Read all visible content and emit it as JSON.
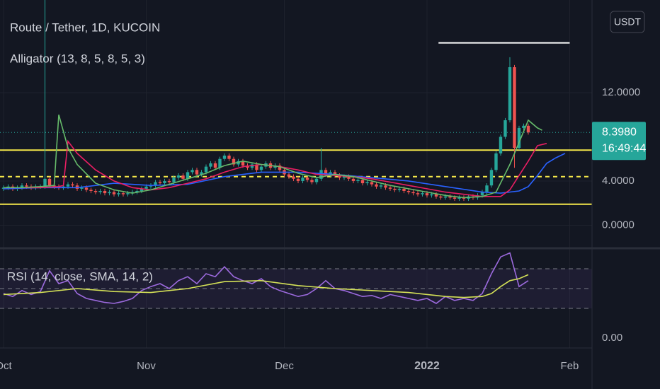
{
  "chart_data": [
    {
      "type": "candlestick",
      "title": "Route / Tether, 1D, KUCOIN",
      "subtitle": "Alligator (13, 8, 5, 8, 5, 3)",
      "currency": "USDT",
      "up_color": "#26a69a",
      "down_color": "#ef5350",
      "xlim": [
        -0.77,
        127.85
      ],
      "ylim": [
        -2.02,
        20.38
      ],
      "grid": true,
      "xticks": [
        {
          "value": 0,
          "label": "Oct"
        },
        {
          "value": 31,
          "label": "Nov"
        },
        {
          "value": 61,
          "label": "Dec"
        },
        {
          "value": 92,
          "label": "2022"
        },
        {
          "value": 123,
          "label": "Feb"
        }
      ],
      "yticks": [
        {
          "value": 0,
          "label": "0.0000"
        },
        {
          "value": 4,
          "label": "4.0000"
        },
        {
          "value": 12,
          "label": "12.0000"
        }
      ],
      "open": [
        3.3,
        3.4,
        3.5,
        3.3,
        3.4,
        3.6,
        3.5,
        3.4,
        3.5,
        3.5,
        4.2,
        3.6,
        3.5,
        3.4,
        3.5,
        3.7,
        3.6,
        3.3,
        3.4,
        3.2,
        3.1,
        3.0,
        3.1,
        2.9,
        3.0,
        2.8,
        2.9,
        2.8,
        2.9,
        3.0,
        3.1,
        3.3,
        3.5,
        3.6,
        3.9,
        3.8,
        4.0,
        3.9,
        4.3,
        4.5,
        4.2,
        4.8,
        5.0,
        4.6,
        4.8,
        5.3,
        5.6,
        5.2,
        6.0,
        6.3,
        6.0,
        5.5,
        5.8,
        5.4,
        5.2,
        5.5,
        5.0,
        5.3,
        5.6,
        5.2,
        5.4,
        5.0,
        4.6,
        4.4,
        4.2,
        4.0,
        4.3,
        4.1,
        3.9,
        4.2,
        5.0,
        4.6,
        4.8,
        4.5,
        4.3,
        4.4,
        4.2,
        4.0,
        4.1,
        3.8,
        3.9,
        3.7,
        3.5,
        3.6,
        3.4,
        3.3,
        3.2,
        3.3,
        3.1,
        3.0,
        2.9,
        2.8,
        2.9,
        2.7,
        2.8,
        2.6,
        2.5,
        2.6,
        2.5,
        2.4,
        2.5,
        2.4,
        2.6,
        2.5,
        2.7,
        3.0,
        3.6,
        5.0,
        6.5,
        8.0,
        9.5,
        14.3,
        7.0,
        8.8,
        9.0
      ],
      "high": [
        3.6,
        3.7,
        3.7,
        3.6,
        3.8,
        3.8,
        3.7,
        3.7,
        3.7,
        20.5,
        4.4,
        3.8,
        3.7,
        3.7,
        3.9,
        3.9,
        3.8,
        3.6,
        3.6,
        3.4,
        3.3,
        3.3,
        3.3,
        3.2,
        3.2,
        3.1,
        3.1,
        3.1,
        3.2,
        3.3,
        3.5,
        3.7,
        3.8,
        4.1,
        4.1,
        4.2,
        4.2,
        4.5,
        4.7,
        4.7,
        5.0,
        5.2,
        5.2,
        5.0,
        5.5,
        5.8,
        5.8,
        6.2,
        6.5,
        6.5,
        6.2,
        6.0,
        6.0,
        5.6,
        5.7,
        5.7,
        5.5,
        5.8,
        5.8,
        5.6,
        5.6,
        5.2,
        4.8,
        4.6,
        4.4,
        4.5,
        4.5,
        4.3,
        4.4,
        7.0,
        5.2,
        5.0,
        5.0,
        4.7,
        4.6,
        4.6,
        4.4,
        4.3,
        4.3,
        4.1,
        4.1,
        3.9,
        3.8,
        3.8,
        3.6,
        3.5,
        3.5,
        3.5,
        3.3,
        3.2,
        3.1,
        3.1,
        3.1,
        3.0,
        3.0,
        2.8,
        2.8,
        2.8,
        2.7,
        2.7,
        2.7,
        2.8,
        2.8,
        2.9,
        3.2,
        3.8,
        5.2,
        6.7,
        8.2,
        9.7,
        15.2,
        14.5,
        9.0,
        9.2,
        9.2
      ],
      "low": [
        3.1,
        3.2,
        3.1,
        3.1,
        3.2,
        3.3,
        3.2,
        3.2,
        3.3,
        3.3,
        3.4,
        3.3,
        3.2,
        3.2,
        3.3,
        3.4,
        3.1,
        3.1,
        3.0,
        2.9,
        2.8,
        2.8,
        2.7,
        2.7,
        2.6,
        2.6,
        2.6,
        2.6,
        2.7,
        2.8,
        2.9,
        3.1,
        3.3,
        3.4,
        3.6,
        3.6,
        3.7,
        3.7,
        4.1,
        4.0,
        4.0,
        4.6,
        4.4,
        4.4,
        4.6,
        5.1,
        5.0,
        5.0,
        5.8,
        5.8,
        5.3,
        5.3,
        5.2,
        5.0,
        5.0,
        4.8,
        4.8,
        5.1,
        5.0,
        5.0,
        4.8,
        4.4,
        4.2,
        4.0,
        3.8,
        3.8,
        3.9,
        3.7,
        3.7,
        4.0,
        4.4,
        4.4,
        4.3,
        4.1,
        4.1,
        4.0,
        3.8,
        3.8,
        3.6,
        3.6,
        3.5,
        3.3,
        3.3,
        3.2,
        3.1,
        3.0,
        3.0,
        2.9,
        2.8,
        2.7,
        2.6,
        2.6,
        2.5,
        2.5,
        2.4,
        2.3,
        2.3,
        2.3,
        2.2,
        2.2,
        2.2,
        2.2,
        2.3,
        2.3,
        2.5,
        2.8,
        3.4,
        4.8,
        6.3,
        7.8,
        9.3,
        5.2,
        6.8,
        8.6,
        8.2
      ],
      "close": [
        3.4,
        3.5,
        3.3,
        3.4,
        3.6,
        3.5,
        3.4,
        3.5,
        3.5,
        4.2,
        3.6,
        3.5,
        3.4,
        3.5,
        3.7,
        3.6,
        3.3,
        3.4,
        3.2,
        3.1,
        3.0,
        3.1,
        2.9,
        3.0,
        2.8,
        2.9,
        2.8,
        2.9,
        3.0,
        3.1,
        3.3,
        3.5,
        3.6,
        3.9,
        3.8,
        4.0,
        3.9,
        4.3,
        4.5,
        4.2,
        4.8,
        5.0,
        4.6,
        4.8,
        5.3,
        5.6,
        5.2,
        6.0,
        6.3,
        6.0,
        5.5,
        5.8,
        5.4,
        5.2,
        5.5,
        5.0,
        5.3,
        5.6,
        5.2,
        5.4,
        5.0,
        4.6,
        4.4,
        4.2,
        4.0,
        4.3,
        4.1,
        3.9,
        4.2,
        5.0,
        4.6,
        4.8,
        4.5,
        4.3,
        4.4,
        4.2,
        4.0,
        4.1,
        3.8,
        3.9,
        3.7,
        3.5,
        3.6,
        3.4,
        3.3,
        3.2,
        3.3,
        3.1,
        3.0,
        2.9,
        2.8,
        2.9,
        2.7,
        2.8,
        2.6,
        2.5,
        2.6,
        2.5,
        2.4,
        2.5,
        2.4,
        2.6,
        2.5,
        2.7,
        3.0,
        3.6,
        5.0,
        6.5,
        8.0,
        9.5,
        14.3,
        7.0,
        8.8,
        9.0,
        8.4
      ],
      "overlays": [
        {
          "color": "#2962ff",
          "x": [
            0,
            8,
            16,
            24,
            32,
            40,
            48,
            56,
            64,
            72,
            80,
            88,
            96,
            104,
            108,
            112,
            114,
            116,
            118,
            120,
            122
          ],
          "values": [
            3.3,
            3.4,
            3.4,
            3.8,
            3.6,
            3.7,
            4.4,
            4.8,
            4.8,
            4.6,
            4.3,
            4.0,
            3.5,
            3.0,
            2.9,
            3.1,
            3.5,
            4.5,
            5.6,
            6.1,
            6.5
          ]
        },
        {
          "color": "#e91e63",
          "x": [
            0,
            4,
            8,
            12,
            13,
            14,
            16,
            20,
            24,
            28,
            32,
            36,
            40,
            44,
            48,
            52,
            56,
            60,
            64,
            68,
            72,
            76,
            80,
            84,
            88,
            92,
            96,
            100,
            104,
            108,
            110,
            112,
            114,
            116,
            118
          ],
          "values": [
            3.4,
            3.4,
            3.4,
            3.5,
            3.6,
            7.6,
            6.5,
            5.0,
            4.0,
            3.4,
            3.2,
            3.4,
            3.8,
            4.2,
            4.8,
            5.3,
            5.5,
            5.3,
            5.0,
            4.6,
            4.5,
            4.4,
            4.2,
            3.9,
            3.6,
            3.3,
            3.0,
            2.8,
            2.6,
            2.6,
            3.2,
            4.5,
            5.8,
            7.2,
            7.4
          ]
        },
        {
          "color": "#66bb6a",
          "x": [
            0,
            4,
            8,
            11,
            12,
            14,
            16,
            20,
            24,
            28,
            32,
            36,
            40,
            44,
            48,
            52,
            56,
            60,
            64,
            68,
            72,
            76,
            80,
            84,
            88,
            92,
            96,
            100,
            104,
            107,
            110,
            112,
            114,
            116,
            117
          ],
          "values": [
            3.4,
            3.4,
            3.5,
            3.6,
            10.0,
            7.0,
            5.5,
            3.8,
            3.2,
            2.9,
            3.2,
            3.7,
            4.2,
            4.7,
            5.4,
            5.8,
            5.5,
            5.3,
            4.7,
            4.3,
            4.6,
            4.4,
            4.0,
            3.6,
            3.3,
            3.0,
            2.7,
            2.5,
            2.6,
            3.0,
            5.5,
            7.5,
            9.5,
            8.8,
            8.6
          ]
        }
      ],
      "drawings": [
        {
          "value": 6.8,
          "color": "#f5e84a",
          "dashed": false
        },
        {
          "value": 4.4,
          "color": "#f5e84a",
          "dashed": true
        },
        {
          "value": 1.9,
          "color": "#f5e84a",
          "dashed": false
        },
        {
          "value": 16.5,
          "from": 94.5,
          "to": 123,
          "color": "#ffffff",
          "dashed": false
        }
      ],
      "last_price": {
        "value": 8.398,
        "label": "8.3980"
      },
      "countdown": "16:49:44"
    },
    {
      "type": "line",
      "title": "RSI (14, close, SMA, 14, 2)",
      "xlim": [
        -0.77,
        127.85
      ],
      "ylim": [
        -10,
        90
      ],
      "yticks": [
        {
          "value": 0,
          "label": "0.00"
        }
      ],
      "bands": [
        70,
        50,
        30
      ],
      "band_fill": "rgba(126,87,194,0.10)",
      "series": [
        {
          "color": "#9c6ade",
          "x": [
            0,
            2,
            4,
            6,
            8,
            10,
            12,
            14,
            16,
            18,
            20,
            22,
            24,
            26,
            28,
            30,
            32,
            34,
            36,
            38,
            40,
            42,
            44,
            46,
            48,
            50,
            52,
            54,
            56,
            58,
            60,
            62,
            64,
            66,
            68,
            70,
            72,
            74,
            76,
            78,
            80,
            82,
            84,
            86,
            88,
            90,
            92,
            94,
            96,
            98,
            100,
            102,
            104,
            106,
            108,
            110,
            112,
            114
          ],
          "values": [
            45,
            42,
            48,
            44,
            47,
            68,
            55,
            58,
            45,
            40,
            38,
            36,
            35,
            37,
            40,
            48,
            52,
            55,
            50,
            58,
            62,
            55,
            65,
            62,
            72,
            62,
            58,
            55,
            60,
            52,
            48,
            45,
            42,
            44,
            50,
            58,
            50,
            48,
            45,
            42,
            43,
            40,
            44,
            42,
            40,
            38,
            40,
            35,
            42,
            38,
            40,
            38,
            45,
            65,
            82,
            86,
            52,
            58
          ]
        },
        {
          "color": "#d4e157",
          "x": [
            0,
            8,
            16,
            24,
            32,
            40,
            48,
            56,
            64,
            72,
            80,
            88,
            96,
            100,
            104,
            106,
            108,
            110,
            112,
            114
          ],
          "values": [
            44,
            46,
            50,
            47,
            46,
            50,
            57,
            58,
            53,
            50,
            48,
            46,
            42,
            41,
            42,
            45,
            52,
            58,
            60,
            64
          ]
        }
      ]
    }
  ]
}
